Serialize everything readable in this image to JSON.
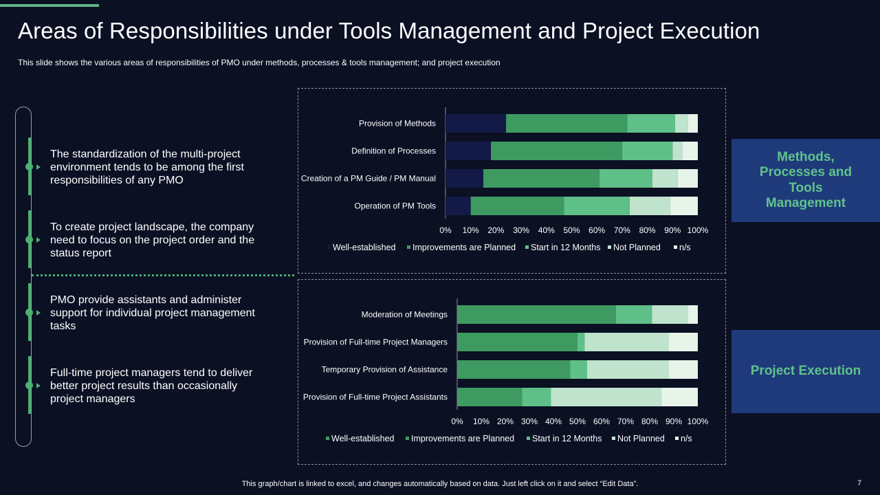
{
  "title": "Areas of Responsibilities under Tools Management and Project Execution",
  "subtitle": "This slide shows the various  areas of responsibilities of PMO under methods, processes & tools management; and project execution",
  "points": [
    "The standardization of the multi-project environment  tends to be among the first responsibilities of any PMO",
    "To create project landscape, the company need to focus on the project order and the status report",
    "PMO provide assistants and administer support for individual project management tasks",
    "Full-time project managers tend to deliver better project results than occasionally project managers"
  ],
  "side_labels": {
    "methods": "Methods, Processes and Tools Management",
    "execution": "Project Execution"
  },
  "footer": "This graph/chart is linked to excel,  and changes automatically based on data. Just left click on it and select “Edit Data”.",
  "page_number": "7",
  "colors": {
    "accent": "#5fb58a",
    "well_established_top": "#131a45",
    "well_established_bottom": "#3f9a62",
    "improvements": "#3f9a62",
    "start_12": "#5fbf88",
    "not_planned": "#bfe3cc",
    "ns": "#e6f4ea",
    "side_label_bg": "#1f3a7a"
  },
  "chart_data": [
    {
      "type": "bar",
      "orientation": "horizontal",
      "stacked": true,
      "categories": [
        "Provision of Methods",
        "Definition of Processes",
        "Creation of a PM Guide / PM Manual",
        "Operation of PM Tools"
      ],
      "series": [
        {
          "name": "Well-established",
          "values": [
            24,
            18,
            15,
            10
          ]
        },
        {
          "name": "Improvements are Planned",
          "values": [
            48,
            52,
            46,
            37
          ]
        },
        {
          "name": "Start in 12 Months",
          "values": [
            19,
            20,
            21,
            26
          ]
        },
        {
          "name": "Not Planned",
          "values": [
            5,
            4,
            10,
            16
          ]
        },
        {
          "name": "n/s",
          "values": [
            4,
            6,
            8,
            11
          ]
        }
      ],
      "xlim": [
        0,
        100
      ],
      "xticks": [
        "0%",
        "10%",
        "20%",
        "30%",
        "40%",
        "50%",
        "60%",
        "70%",
        "80%",
        "90%",
        "100%"
      ],
      "legend": "bottom"
    },
    {
      "type": "bar",
      "orientation": "horizontal",
      "stacked": true,
      "categories": [
        "Moderation of Meetings",
        "Provision of Full-time Project Managers",
        "Temporary Provision of Assistance",
        "Provision of Full-time Project Assistants"
      ],
      "series": [
        {
          "name": "Well-established",
          "values": [
            27,
            23,
            16,
            12
          ]
        },
        {
          "name": "Improvements are Planned",
          "values": [
            39,
            27,
            31,
            15
          ]
        },
        {
          "name": "Start in 12 Months",
          "values": [
            15,
            3,
            7,
            12
          ]
        },
        {
          "name": "Not Planned",
          "values": [
            15,
            35,
            34,
            46
          ]
        },
        {
          "name": "n/s",
          "values": [
            4,
            12,
            12,
            15
          ]
        }
      ],
      "xlim": [
        0,
        100
      ],
      "xticks": [
        "0%",
        "10%",
        "20%",
        "30%",
        "40%",
        "50%",
        "60%",
        "70%",
        "80%",
        "90%",
        "100%"
      ],
      "legend": "bottom"
    }
  ]
}
